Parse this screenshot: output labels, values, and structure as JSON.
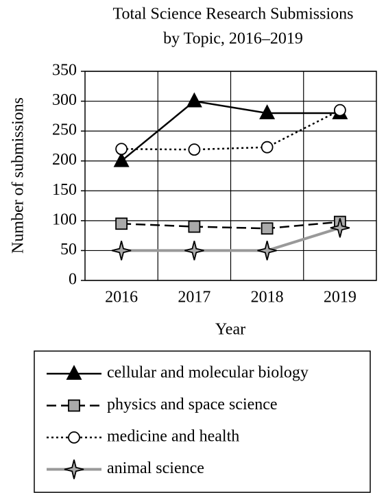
{
  "chart_data": {
    "type": "line",
    "title": [
      "Total Science Research Submissions",
      "by Topic, 2016–2019"
    ],
    "x_label": "Year",
    "y_label": "Number of submissions",
    "categories": [
      "2016",
      "2017",
      "2018",
      "2019"
    ],
    "series": [
      {
        "name": "cellular and molecular biology",
        "color": "#000000",
        "marker_fill": "#000000",
        "dash": "solid",
        "marker": "triangle",
        "values": [
          200,
          300,
          280,
          280
        ]
      },
      {
        "name": "physics and space science",
        "color": "#000000",
        "marker_fill": "#aaaaaa",
        "dash": "dashed",
        "marker": "square",
        "values": [
          95,
          90,
          87,
          98
        ]
      },
      {
        "name": "medicine and health",
        "color": "#000000",
        "marker_fill": "#ffffff",
        "dash": "dotted",
        "marker": "circle",
        "values": [
          220,
          219,
          223,
          285
        ]
      },
      {
        "name": "animal science",
        "color": "#999999",
        "marker_fill": "#aaaaaa",
        "dash": "solid",
        "marker": "star",
        "values": [
          50,
          50,
          50,
          88
        ]
      }
    ],
    "ylim": [
      0,
      350
    ],
    "yticks": [
      0,
      50,
      100,
      150,
      200,
      250,
      300,
      350
    ],
    "grid": true,
    "legend": "below"
  }
}
